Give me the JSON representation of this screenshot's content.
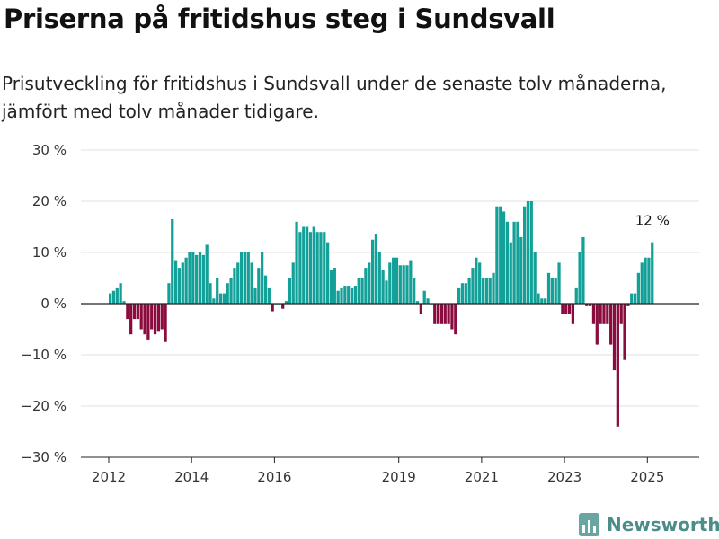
{
  "header": {
    "title": "Priserna på fritidshus steg i Sundsvall",
    "subtitle": "Prisutveckling för fritidshus i Sundsvall under de senaste tolv månaderna, jämfört med tolv månader tidigare."
  },
  "brand": {
    "name": "Newsworthy",
    "icon": "bar-chart-logo-icon"
  },
  "colors": {
    "positive": "#13a098",
    "negative": "#8a0c3f",
    "grid": "#e2e2e2",
    "axis": "#222222"
  },
  "chart_data": {
    "type": "bar",
    "ylim": [
      -30,
      30
    ],
    "yticks": [
      30,
      20,
      10,
      0,
      -10,
      -20,
      -30
    ],
    "ytick_labels": [
      "30 %",
      "20 %",
      "10 %",
      "0 %",
      "−10 %",
      "−20 %",
      "−30 %"
    ],
    "xticks": [
      "2012",
      "2014",
      "2016",
      "2019",
      "2021",
      "2023",
      "2025"
    ],
    "annotation": "12 %",
    "grid": true,
    "legend": "none",
    "start": "2012-01",
    "values": [
      2,
      2.5,
      3,
      4,
      0.5,
      -3,
      -6,
      -3,
      -3,
      -5,
      -6,
      -7,
      -5,
      -6,
      -5.5,
      -5,
      -7.5,
      4,
      16.5,
      8.5,
      7,
      8,
      9,
      10,
      10,
      9.5,
      10,
      9.5,
      11.5,
      4,
      1,
      5,
      2,
      2,
      4,
      5,
      7,
      8,
      10,
      10,
      10,
      8,
      3,
      7,
      10,
      5.5,
      3,
      -1.5,
      0,
      0,
      -1,
      0.5,
      5,
      8,
      16,
      14,
      15,
      15,
      14,
      15,
      14,
      14,
      14,
      12,
      6.5,
      7,
      2.5,
      3,
      3.5,
      3.5,
      3,
      3.5,
      5,
      5,
      7,
      8,
      12.5,
      13.5,
      10,
      6.5,
      4.5,
      8,
      9,
      9,
      7.5,
      7.5,
      7.5,
      8.5,
      5,
      0.5,
      -2,
      2.5,
      1,
      0,
      -4,
      -4,
      -4,
      -4,
      -4,
      -5,
      -6,
      3,
      4,
      4,
      5,
      7,
      9,
      8,
      5,
      5,
      5,
      6,
      19,
      19,
      18,
      16,
      12,
      16,
      16,
      13,
      19,
      20,
      20,
      10,
      2,
      1,
      1,
      6,
      5,
      5,
      8,
      -2,
      -2,
      -2,
      -4,
      3,
      10,
      13,
      -0.5,
      -0.5,
      -4,
      -8,
      -4,
      -4,
      -4,
      -8,
      -13,
      -24,
      -4,
      -11,
      -0.5,
      2,
      2,
      6,
      8,
      9,
      9,
      12
    ]
  }
}
